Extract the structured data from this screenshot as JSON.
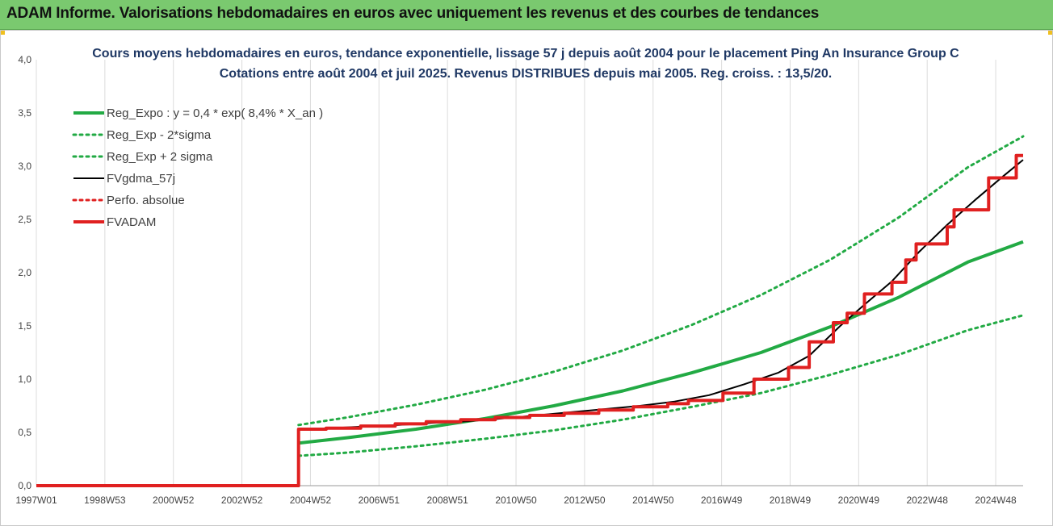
{
  "header": {
    "title": "ADAM Informe. Valorisations hebdomadaires en euros avec uniquement les revenus et des courbes de tendances"
  },
  "chart_data": {
    "type": "line",
    "title": "Cours moyens hebdomadaires en euros, tendance exponentielle, lissage 57 j depuis août 2004 pour le placement Ping An Insurance Group C",
    "subtitle": "Cotations entre août 2004 et juil 2025. Revenus DISTRIBUES depuis mai 2005. Reg. croiss. : 13,5/20.",
    "xlabel": "",
    "ylabel": "",
    "x_ticks": [
      "1997W01",
      "1998W53",
      "2000W52",
      "2002W52",
      "2004W52",
      "2006W51",
      "2008W51",
      "2010W50",
      "2012W50",
      "2014W50",
      "2016W49",
      "2018W49",
      "2020W49",
      "2022W48",
      "2024W48"
    ],
    "y_ticks": [
      "0,0",
      "0,5",
      "1,0",
      "1,5",
      "2,0",
      "2,5",
      "3,0",
      "3,5",
      "4,0"
    ],
    "ylim": [
      0,
      4.0
    ],
    "xlim": [
      1997.0,
      2025.6
    ],
    "grid": "vertical",
    "legend_position": "top-left",
    "series": [
      {
        "name": "Reg_Expo : y = 0,4 * exp( 8,4% *  X_an )",
        "color": "#22aa44",
        "style": "solid-thick",
        "points": [
          [
            2004.6,
            0.4
          ],
          [
            2006,
            0.45
          ],
          [
            2008,
            0.53
          ],
          [
            2010,
            0.63
          ],
          [
            2012,
            0.75
          ],
          [
            2014,
            0.89
          ],
          [
            2016,
            1.06
          ],
          [
            2018,
            1.25
          ],
          [
            2020,
            1.49
          ],
          [
            2022,
            1.77
          ],
          [
            2024,
            2.1
          ],
          [
            2025.6,
            2.29
          ]
        ]
      },
      {
        "name": "Reg_Exp - 2*sigma",
        "color": "#22aa44",
        "style": "dotted",
        "points": [
          [
            2004.6,
            0.28
          ],
          [
            2006,
            0.31
          ],
          [
            2008,
            0.37
          ],
          [
            2010,
            0.44
          ],
          [
            2012,
            0.52
          ],
          [
            2014,
            0.62
          ],
          [
            2016,
            0.74
          ],
          [
            2018,
            0.87
          ],
          [
            2020,
            1.04
          ],
          [
            2022,
            1.23
          ],
          [
            2024,
            1.46
          ],
          [
            2025.6,
            1.6
          ]
        ]
      },
      {
        "name": "Reg_Exp + 2 sigma",
        "color": "#22aa44",
        "style": "dotted",
        "points": [
          [
            2004.6,
            0.57
          ],
          [
            2006,
            0.64
          ],
          [
            2008,
            0.76
          ],
          [
            2010,
            0.9
          ],
          [
            2012,
            1.07
          ],
          [
            2014,
            1.27
          ],
          [
            2016,
            1.51
          ],
          [
            2018,
            1.79
          ],
          [
            2020,
            2.12
          ],
          [
            2022,
            2.52
          ],
          [
            2024,
            2.99
          ],
          [
            2025.6,
            3.28
          ]
        ]
      },
      {
        "name": "FVgdma_57j",
        "color": "#000000",
        "style": "solid",
        "points": [
          [
            1997.0,
            0
          ],
          [
            2004.6,
            0
          ],
          [
            2004.6,
            0.53
          ],
          [
            2005.5,
            0.54
          ],
          [
            2006.5,
            0.555
          ],
          [
            2007.5,
            0.57
          ],
          [
            2008.5,
            0.59
          ],
          [
            2009.5,
            0.605
          ],
          [
            2010.5,
            0.63
          ],
          [
            2011.5,
            0.66
          ],
          [
            2012.5,
            0.69
          ],
          [
            2013.5,
            0.72
          ],
          [
            2014.5,
            0.75
          ],
          [
            2015.5,
            0.79
          ],
          [
            2016.5,
            0.85
          ],
          [
            2017.5,
            0.95
          ],
          [
            2018.5,
            1.06
          ],
          [
            2019.4,
            1.22
          ],
          [
            2020.3,
            1.5
          ],
          [
            2021.0,
            1.7
          ],
          [
            2021.8,
            1.92
          ],
          [
            2022.6,
            2.2
          ],
          [
            2023.4,
            2.45
          ],
          [
            2024.2,
            2.68
          ],
          [
            2025.0,
            2.9
          ],
          [
            2025.6,
            3.06
          ]
        ]
      },
      {
        "name": "Perfo. absolue",
        "color": "#e02020",
        "style": "dotted",
        "points": []
      },
      {
        "name": "FVADAM",
        "color": "#e02020",
        "style": "step-thick",
        "steps": [
          [
            1997.0,
            0
          ],
          [
            2004.6,
            0.53
          ],
          [
            2005.4,
            0.54
          ],
          [
            2006.4,
            0.56
          ],
          [
            2007.4,
            0.58
          ],
          [
            2008.3,
            0.6
          ],
          [
            2009.3,
            0.62
          ],
          [
            2010.3,
            0.64
          ],
          [
            2011.3,
            0.66
          ],
          [
            2012.3,
            0.68
          ],
          [
            2013.3,
            0.71
          ],
          [
            2014.3,
            0.74
          ],
          [
            2015.3,
            0.77
          ],
          [
            2015.9,
            0.8
          ],
          [
            2016.9,
            0.87
          ],
          [
            2017.8,
            1.0
          ],
          [
            2018.8,
            1.11
          ],
          [
            2019.4,
            1.35
          ],
          [
            2020.1,
            1.53
          ],
          [
            2020.5,
            1.62
          ],
          [
            2021.0,
            1.8
          ],
          [
            2021.8,
            1.91
          ],
          [
            2022.2,
            2.12
          ],
          [
            2022.5,
            2.27
          ],
          [
            2023.4,
            2.43
          ],
          [
            2023.6,
            2.59
          ],
          [
            2024.6,
            2.89
          ],
          [
            2025.4,
            3.1
          ]
        ],
        "end_x": 2025.6
      }
    ]
  }
}
